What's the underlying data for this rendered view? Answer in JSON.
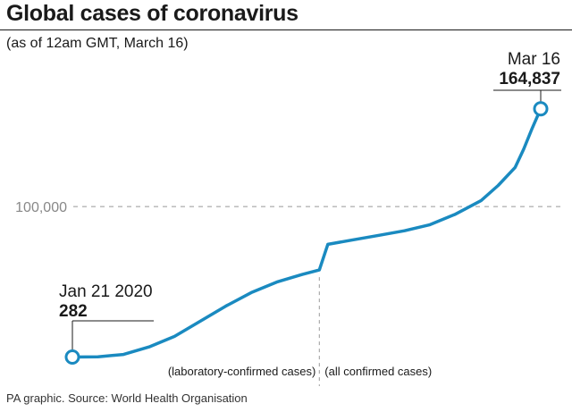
{
  "header": {
    "title": "Global cases of coronavirus",
    "subtitle": "(as of 12am GMT, March 16)"
  },
  "footer": {
    "source": "PA graphic. Source: World Health Organisation"
  },
  "colors": {
    "line": "#1a8ac0",
    "text": "#1a1a1a",
    "guide": "#999999"
  },
  "chart_data": {
    "type": "line",
    "title": "Global cases of coronavirus",
    "subtitle": "(as of 12am GMT, March 16)",
    "x_range": [
      "2020-01-21",
      "2020-03-16"
    ],
    "ylim": [
      0,
      170000
    ],
    "y_tick_labels": [
      "100,000"
    ],
    "y_ticks": [
      100000
    ],
    "grid": false,
    "series": [
      {
        "x": [
          "2020-01-21",
          "2020-01-24",
          "2020-01-27",
          "2020-01-30",
          "2020-02-02",
          "2020-02-05",
          "2020-02-08",
          "2020-02-11",
          "2020-02-14",
          "2020-02-17",
          "2020-02-19",
          "2020-02-20",
          "2020-02-23",
          "2020-02-26",
          "2020-02-29",
          "2020-03-03",
          "2020-03-06",
          "2020-03-09",
          "2020-03-11",
          "2020-03-13",
          "2020-03-14",
          "2020-03-15",
          "2020-03-16"
        ],
        "y": [
          282,
          500,
          2000,
          7000,
          14000,
          24000,
          34000,
          43000,
          50000,
          55000,
          58000,
          75000,
          78000,
          81000,
          84000,
          88000,
          95000,
          104000,
          114000,
          126000,
          138000,
          152000,
          164837
        ]
      }
    ],
    "annotations": [
      {
        "label": "Jan 21 2020",
        "value": "282",
        "x": "2020-01-21",
        "y": 282
      },
      {
        "label": "Mar 16",
        "value": "164,837",
        "x": "2020-03-16",
        "y": 164837
      }
    ],
    "divider": {
      "x": "2020-02-19",
      "left_label": "(laboratory-confirmed cases)",
      "right_label": "(all confirmed cases)"
    }
  }
}
